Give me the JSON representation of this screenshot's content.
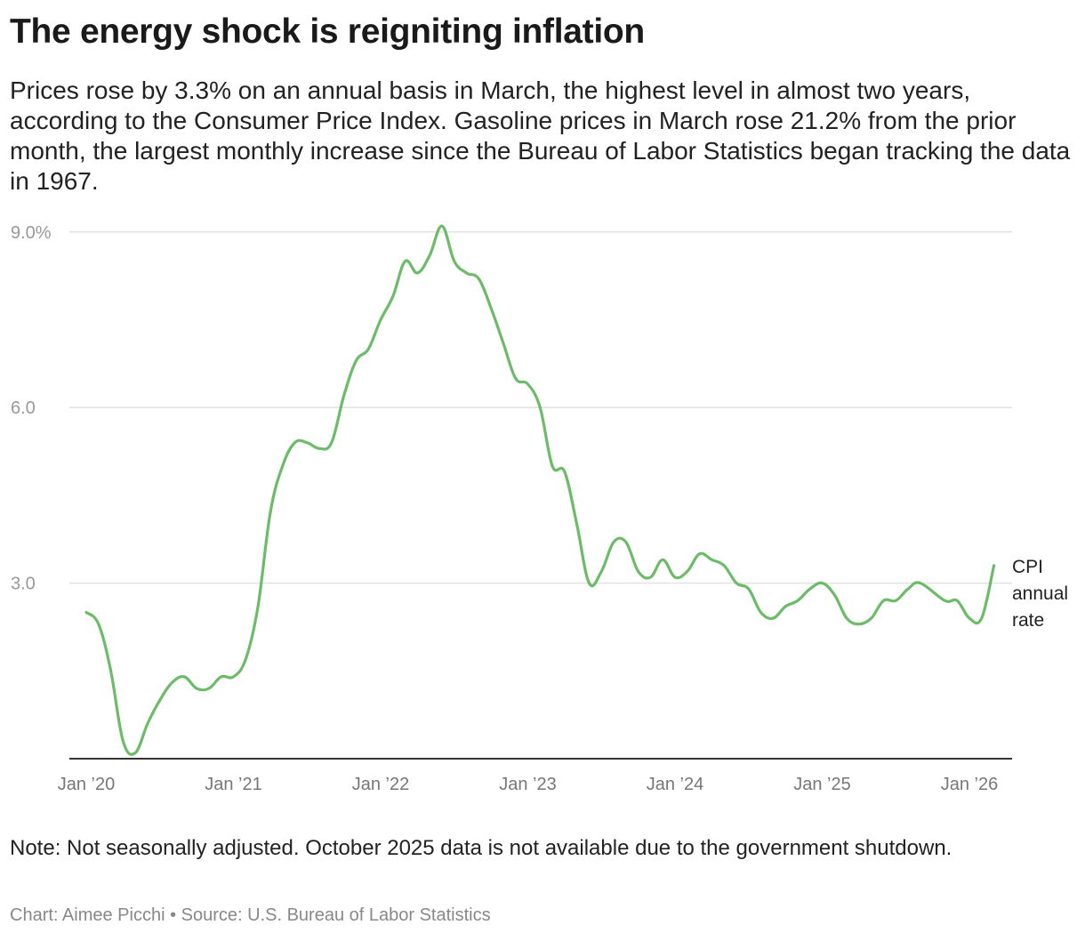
{
  "title": "The energy shock is reigniting inflation",
  "subtitle": "Prices rose by 3.3% on an annual basis in March, the highest level in almost two years, according to the Consumer Price Index. Gasoline prices in March rose 21.2% from the prior month, the largest monthly increase since the Bureau of Labor Statistics began tracking the data in 1967.",
  "note": "Note: Not seasonally adjusted. October 2025 data is not available due to the government shutdown.",
  "credit": {
    "chart": "Chart: Aimee Picchi",
    "separator": "•",
    "source": "Source: U.S. Bureau of Labor Statistics"
  },
  "chart_data": {
    "type": "line",
    "title": "",
    "xlabel": "",
    "ylabel": "",
    "ylim": [
      0,
      9
    ],
    "xlim": [
      "2020-01",
      "2026-03"
    ],
    "grid": true,
    "y_ticks": [
      {
        "value": 3,
        "label": "3.0"
      },
      {
        "value": 6,
        "label": "6.0"
      },
      {
        "value": 9,
        "label": "9.0%"
      }
    ],
    "x_ticks": [
      {
        "value": "2020-01",
        "label": "Jan ’20"
      },
      {
        "value": "2021-01",
        "label": "Jan ’21"
      },
      {
        "value": "2022-01",
        "label": "Jan ’22"
      },
      {
        "value": "2023-01",
        "label": "Jan ’23"
      },
      {
        "value": "2024-01",
        "label": "Jan ’24"
      },
      {
        "value": "2025-01",
        "label": "Jan ’25"
      },
      {
        "value": "2026-01",
        "label": "Jan ’26"
      }
    ],
    "series": [
      {
        "name": "CPI annual rate",
        "label_lines": [
          "CPI",
          "annual",
          "rate"
        ],
        "color": "#6cbb69",
        "start": "2020-01",
        "values": [
          2.5,
          2.3,
          1.5,
          0.3,
          0.1,
          0.6,
          1.0,
          1.3,
          1.4,
          1.2,
          1.2,
          1.4,
          1.4,
          1.7,
          2.6,
          4.2,
          5.0,
          5.4,
          5.4,
          5.3,
          5.4,
          6.2,
          6.8,
          7.0,
          7.5,
          7.9,
          8.5,
          8.3,
          8.6,
          9.1,
          8.5,
          8.3,
          8.2,
          7.7,
          7.1,
          6.5,
          6.4,
          6.0,
          5.0,
          4.9,
          4.0,
          3.0,
          3.2,
          3.7,
          3.7,
          3.2,
          3.1,
          3.4,
          3.1,
          3.2,
          3.5,
          3.4,
          3.3,
          3.0,
          2.9,
          2.5,
          2.4,
          2.6,
          2.7,
          2.9,
          3.0,
          2.8,
          2.4,
          2.3,
          2.4,
          2.7,
          2.7,
          2.9,
          3.0,
          null,
          2.7,
          2.7,
          2.4,
          2.4,
          3.3
        ]
      }
    ]
  }
}
